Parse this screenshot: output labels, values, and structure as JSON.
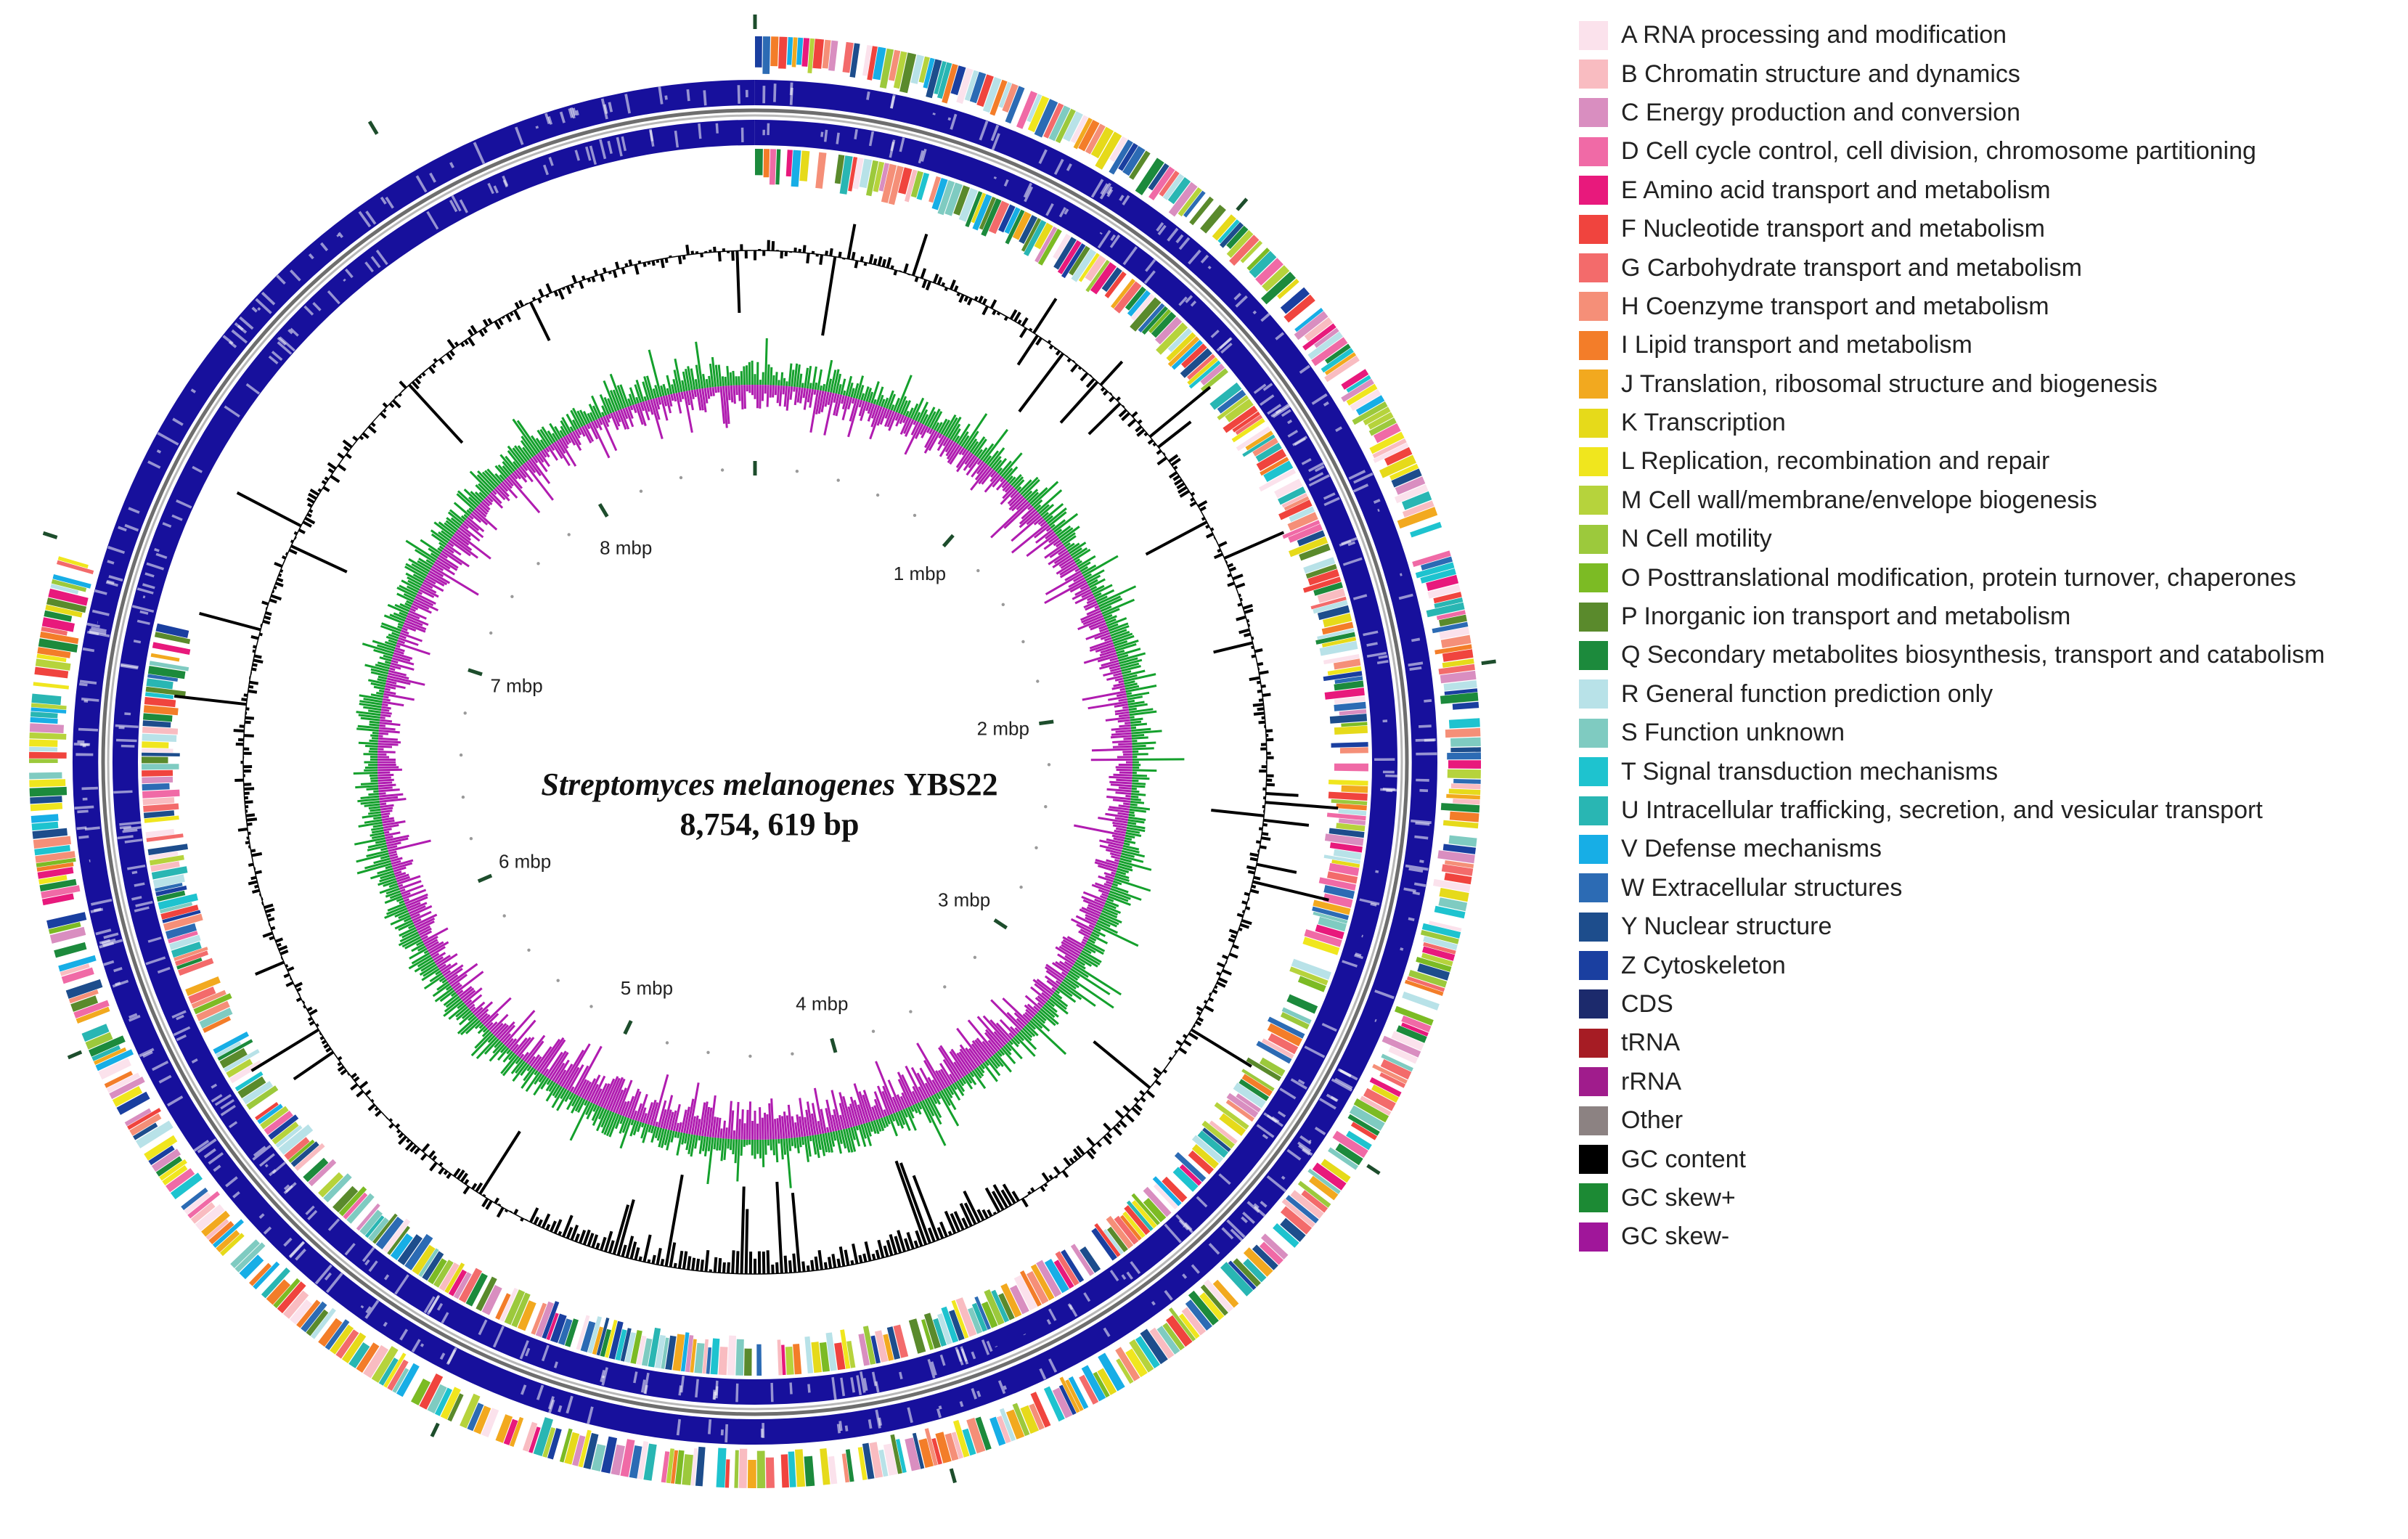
{
  "genome": {
    "species": "Streptomyces melanogenes",
    "strain": "YBS22",
    "size_label": "8,754, 619 bp",
    "tick_labels": [
      "1 mbp",
      "2 mbp",
      "3 mbp",
      "4 mbp",
      "5 mbp",
      "6 mbp",
      "7 mbp",
      "8 mbp"
    ],
    "total_mbp": 8.754619
  },
  "legend": {
    "items": [
      {
        "label": "A RNA processing and modification",
        "color": "#fbe2ec"
      },
      {
        "label": "B Chromatin structure and dynamics",
        "color": "#f9bcc1"
      },
      {
        "label": "C Energy production and conversion",
        "color": "#d98ec0"
      },
      {
        "label": "D Cell cycle control, cell division, chromosome partitioning",
        "color": "#f06aa6"
      },
      {
        "label": "E Amino acid transport and metabolism",
        "color": "#e8197c"
      },
      {
        "label": "F Nucleotide transport and metabolism",
        "color": "#f0443e"
      },
      {
        "label": "G Carbohydrate transport and metabolism",
        "color": "#f36b6b"
      },
      {
        "label": "H Coenzyme transport and metabolism",
        "color": "#f58f78"
      },
      {
        "label": "I Lipid transport and metabolism",
        "color": "#f37d29"
      },
      {
        "label": "J Translation, ribosomal structure and biogenesis",
        "color": "#f2a91f"
      },
      {
        "label": "K Transcription",
        "color": "#e6da1a"
      },
      {
        "label": "L Replication, recombination and repair",
        "color": "#f0e61e"
      },
      {
        "label": "M Cell wall/membrane/envelope biogenesis",
        "color": "#b6d33c"
      },
      {
        "label": "N Cell motility",
        "color": "#9cc93c"
      },
      {
        "label": "O Posttranslational modification, protein turnover, chaperones",
        "color": "#7cbb24"
      },
      {
        "label": "P Inorganic ion transport and metabolism",
        "color": "#5a8a2c"
      },
      {
        "label": "Q Secondary metabolites biosynthesis, transport and catabolism",
        "color": "#1c8a3c"
      },
      {
        "label": "R General function prediction only",
        "color": "#b8e2e8"
      },
      {
        "label": "S Function unknown",
        "color": "#7fcbc1"
      },
      {
        "label": "T Signal transduction mechanisms",
        "color": "#1ec3cf"
      },
      {
        "label": "U Intracellular trafficking, secretion, and vesicular transport",
        "color": "#29b6b3"
      },
      {
        "label": "V Defense mechanisms",
        "color": "#17aee6"
      },
      {
        "label": "W Extracellular structures",
        "color": "#2c6bb4"
      },
      {
        "label": "Y Nuclear structure",
        "color": "#1d4d8c"
      },
      {
        "label": "Z Cytoskeleton",
        "color": "#1a3fa0"
      },
      {
        "label": "CDS",
        "color": "#1c2a6c"
      },
      {
        "label": "tRNA",
        "color": "#a61c24"
      },
      {
        "label": "rRNA",
        "color": "#a01c8c"
      },
      {
        "label": "Other",
        "color": "#8c8282"
      },
      {
        "label": "GC content",
        "color": "#000000"
      },
      {
        "label": "GC skew+",
        "color": "#1c8a34"
      },
      {
        "label": "GC skew-",
        "color": "#a0169a"
      }
    ]
  },
  "track_colors": {
    "cds_band": "#17109c",
    "backbone": "#6e6e6e",
    "gc_content": "#000000",
    "gc_skew_pos": "#14a02c",
    "gc_skew_neg": "#b01cb0",
    "tick_mark": "#1d4d2c"
  }
}
